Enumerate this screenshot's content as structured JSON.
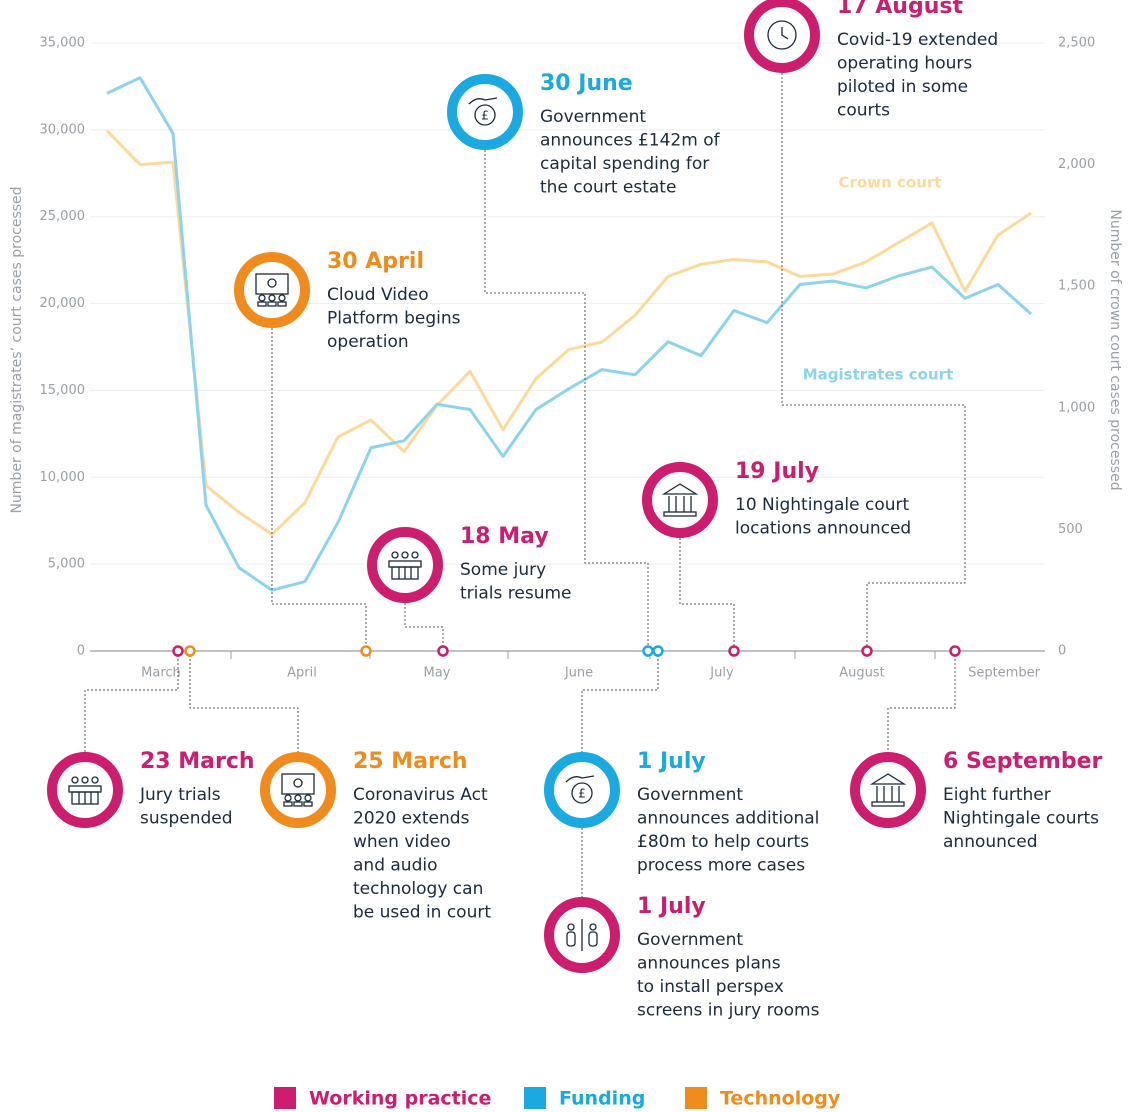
{
  "chart_data": {
    "type": "line",
    "ylabel": "Number of magistrates’ court cases processed",
    "y2label": "Number of crown court cases processed",
    "categories": [
      null,
      null,
      null,
      null,
      null,
      null,
      null,
      null,
      null,
      null,
      null,
      null,
      null,
      null,
      null,
      null,
      null,
      null,
      null,
      null,
      null,
      null,
      null,
      null,
      null,
      null,
      null,
      null,
      null
    ],
    "month_labels": [
      "March",
      "April",
      "May",
      "June",
      "July",
      "August",
      "September"
    ],
    "series": [
      {
        "name": "Magistrates court",
        "color": "#8dd3ee",
        "axis": "y",
        "values": [
          32100,
          33000,
          29800,
          8400,
          4800,
          3500,
          4000,
          7400,
          11700,
          12100,
          14200,
          13900,
          11200,
          13900,
          15100,
          16200,
          15900,
          17800,
          17000,
          19600,
          18900,
          21100,
          21300,
          20900,
          21600,
          22100,
          20300,
          21100,
          19400
        ]
      },
      {
        "name": "Crown court",
        "color": "#fdd99a",
        "axis": "y2",
        "values": [
          2140,
          2000,
          2010,
          680,
          570,
          480,
          610,
          880,
          950,
          820,
          1010,
          1150,
          910,
          1120,
          1240,
          1270,
          1380,
          1540,
          1590,
          1610,
          1600,
          1540,
          1550,
          1600,
          1680,
          1760,
          1480,
          1710,
          1800
        ]
      }
    ],
    "ylim": [
      0,
      35000
    ],
    "yticks": [
      0,
      {
        "value": 5000,
        "label": "5,000"
      },
      {
        "value": 10000,
        "label": "10,000"
      },
      {
        "value": 15000,
        "label": "15,000"
      },
      {
        "value": 20000,
        "label": "20,000"
      },
      {
        "value": 25000,
        "label": "25,000"
      },
      {
        "value": 30000,
        "label": "30,000"
      },
      {
        "value": 35000,
        "label": "35,000"
      }
    ],
    "y2lim": [
      0,
      2500
    ],
    "y2ticks": [
      0,
      500,
      {
        "value": 1000,
        "label": "1,000"
      },
      {
        "value": 1500,
        "label": "1,500"
      },
      {
        "value": 2000,
        "label": "2,000"
      },
      {
        "value": 2500,
        "label": "2,500"
      }
    ],
    "grid": true
  },
  "events": [
    {
      "title": "23 March",
      "lines": [
        "Jury trials",
        "suspended"
      ],
      "color": "#cc1d6e"
    },
    {
      "title": "25 March",
      "lines": [
        "Coronavirus Act",
        "2020 extends",
        "when video",
        "and audio",
        "technology can",
        "be used in court"
      ],
      "color": "#f08c1e"
    },
    {
      "title": "30 April",
      "lines": [
        "Cloud Video",
        "Platform begins",
        "operation"
      ],
      "color": "#f08c1e"
    },
    {
      "title": "18 May",
      "lines": [
        "Some jury",
        "trials resume"
      ],
      "color": "#cc1d6e"
    },
    {
      "title": "30 June",
      "lines": [
        "Government",
        "announces £142m of",
        "capital spending for",
        "the court estate"
      ],
      "color": "#1aa9e0"
    },
    {
      "title": "1 July",
      "lines": [
        "Government",
        "announces additional",
        "£80m to help courts",
        "process more cases"
      ],
      "color": "#1aa9e0"
    },
    {
      "title": "1 July",
      "lines": [
        "Government",
        "announces plans",
        "to install perspex",
        "screens in jury rooms"
      ],
      "color": "#cc1d6e"
    },
    {
      "title": "19 July",
      "lines": [
        "10 Nightingale court",
        "locations announced"
      ],
      "color": "#cc1d6e"
    },
    {
      "title": "17 August",
      "lines": [
        "Covid-19 extended",
        "operating hours",
        "piloted in some",
        "courts"
      ],
      "color": "#cc1d6e"
    },
    {
      "title": "6 September",
      "lines": [
        "Eight further",
        "Nightingale courts",
        "announced"
      ],
      "color": "#cc1d6e"
    }
  ],
  "legend": [
    {
      "name": "Working practice",
      "color": "#cc1d6e"
    },
    {
      "name": "Funding",
      "color": "#1aa9e0"
    },
    {
      "name": "Technology",
      "color": "#f08c1e"
    }
  ]
}
